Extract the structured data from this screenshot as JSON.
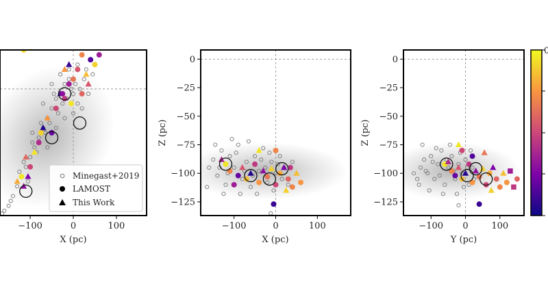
{
  "chart_data": [
    {
      "type": "scatter",
      "xlabel": "X (pc)",
      "ylabel": "",
      "xlim": [
        -170,
        170
      ],
      "ylim": [
        -130,
        40
      ],
      "x_ticks": [
        "-100",
        "0",
        "100"
      ],
      "y_ticks": [],
      "ref_lines": {
        "x": 0,
        "y": 0
      },
      "legend": {
        "position": "lower-right",
        "entries": [
          {
            "label": "Minegast+2019",
            "marker": "open-circle"
          },
          {
            "label": "LAMOST",
            "marker": "filled-circle"
          },
          {
            "label": "This Work",
            "marker": "triangle"
          }
        ]
      },
      "background": [
        {
          "x": -140,
          "y": -110
        },
        {
          "x": -150,
          "y": -120
        },
        {
          "x": -160,
          "y": -125
        },
        {
          "x": -130,
          "y": -100
        },
        {
          "x": -120,
          "y": -90
        },
        {
          "x": -110,
          "y": -80
        },
        {
          "x": -100,
          "y": -70
        },
        {
          "x": -90,
          "y": -60
        },
        {
          "x": -80,
          "y": -50
        },
        {
          "x": -70,
          "y": -40
        },
        {
          "x": -60,
          "y": -30
        },
        {
          "x": -50,
          "y": -20
        },
        {
          "x": -40,
          "y": -10
        },
        {
          "x": -30,
          "y": -5
        },
        {
          "x": -20,
          "y": 5
        },
        {
          "x": -10,
          "y": 10
        },
        {
          "x": 0,
          "y": -5
        },
        {
          "x": 10,
          "y": -15
        },
        {
          "x": 20,
          "y": -20
        },
        {
          "x": -95,
          "y": -55
        },
        {
          "x": -85,
          "y": -65
        },
        {
          "x": -75,
          "y": -35
        },
        {
          "x": -65,
          "y": -45
        },
        {
          "x": -55,
          "y": -35
        },
        {
          "x": -45,
          "y": -5
        },
        {
          "x": -35,
          "y": -25
        },
        {
          "x": -25,
          "y": -15
        },
        {
          "x": -15,
          "y": -10
        },
        {
          "x": -5,
          "y": 0
        },
        {
          "x": 5,
          "y": 5
        },
        {
          "x": 15,
          "y": 0
        },
        {
          "x": 25,
          "y": 10
        },
        {
          "x": 35,
          "y": -5
        },
        {
          "x": 45,
          "y": 15
        },
        {
          "x": -165,
          "y": -128
        },
        {
          "x": -145,
          "y": -115
        },
        {
          "x": -125,
          "y": -85
        },
        {
          "x": -105,
          "y": -95
        },
        {
          "x": -115,
          "y": -75
        },
        {
          "x": -95,
          "y": -45
        },
        {
          "x": -60,
          "y": -60
        },
        {
          "x": -40,
          "y": -40
        },
        {
          "x": -20,
          "y": -30
        },
        {
          "x": 0,
          "y": -25
        },
        {
          "x": 30,
          "y": 20
        },
        {
          "x": 10,
          "y": 25
        },
        {
          "x": -10,
          "y": 20
        },
        {
          "x": -30,
          "y": 15
        },
        {
          "x": -50,
          "y": 5
        },
        {
          "x": -70,
          "y": -15
        }
      ],
      "sample": [
        {
          "x": -115,
          "y": 40,
          "c": 0.92,
          "m": "circle"
        },
        {
          "x": 40,
          "y": 30,
          "c": 0.15,
          "m": "circle"
        },
        {
          "x": 50,
          "y": 25,
          "c": 0.9,
          "m": "circle"
        },
        {
          "x": 20,
          "y": 35,
          "c": 0.7,
          "m": "circle"
        },
        {
          "x": 10,
          "y": 20,
          "c": 0.55,
          "m": "circle"
        },
        {
          "x": 30,
          "y": 15,
          "c": 0.85,
          "m": "triangle"
        },
        {
          "x": -20,
          "y": 20,
          "c": 0.75,
          "m": "triangle"
        },
        {
          "x": 0,
          "y": 10,
          "c": 0.65,
          "m": "circle"
        },
        {
          "x": -10,
          "y": 5,
          "c": 0.35,
          "m": "circle"
        },
        {
          "x": -30,
          "y": -5,
          "c": 0.1,
          "m": "triangle"
        },
        {
          "x": -20,
          "y": -10,
          "c": 0.45,
          "m": "circle"
        },
        {
          "x": -25,
          "y": -5,
          "c": 0.3,
          "m": "circle"
        },
        {
          "x": 20,
          "y": -5,
          "c": 0.6,
          "m": "circle"
        },
        {
          "x": -5,
          "y": -15,
          "c": 0.95,
          "m": "circle"
        },
        {
          "x": -60,
          "y": -30,
          "c": 0.75,
          "m": "triangle"
        },
        {
          "x": -70,
          "y": -40,
          "c": 0.05,
          "m": "triangle"
        },
        {
          "x": -50,
          "y": -45,
          "c": 0.2,
          "m": "circle"
        },
        {
          "x": -80,
          "y": -55,
          "c": 0.4,
          "m": "circle"
        },
        {
          "x": -90,
          "y": -65,
          "c": 0.95,
          "m": "triangle"
        },
        {
          "x": -110,
          "y": -70,
          "c": 0.6,
          "m": "triangle"
        },
        {
          "x": -100,
          "y": -80,
          "c": 0.5,
          "m": "circle"
        },
        {
          "x": -120,
          "y": -90,
          "c": 0.95,
          "m": "circle"
        },
        {
          "x": -115,
          "y": -100,
          "c": 0.3,
          "m": "triangle"
        },
        {
          "x": -130,
          "y": -95,
          "c": 0.8,
          "m": "triangle"
        },
        {
          "x": -105,
          "y": -90,
          "c": 0.25,
          "m": "triangle"
        },
        {
          "x": -40,
          "y": -20,
          "c": 0.5,
          "m": "circle"
        },
        {
          "x": 60,
          "y": 35,
          "c": 0.35,
          "m": "circle"
        },
        {
          "x": -10,
          "y": 25,
          "c": 0.1,
          "m": "triangle"
        },
        {
          "x": -75,
          "y": -45,
          "c": 0.9,
          "m": "circle"
        },
        {
          "x": 35,
          "y": 5,
          "c": 0.55,
          "m": "triangle"
        }
      ],
      "centroids": [
        {
          "x": -110,
          "y": -105
        },
        {
          "x": -50,
          "y": -50
        },
        {
          "x": -20,
          "y": -5
        },
        {
          "x": 15,
          "y": -35
        }
      ]
    },
    {
      "type": "scatter",
      "xlabel": "X (pc)",
      "ylabel": "Z (pc)",
      "xlim": [
        -180,
        180
      ],
      "ylim": [
        -137,
        8
      ],
      "x_ticks": [
        "-100",
        "0",
        "100"
      ],
      "y_ticks": [
        "0",
        "-25",
        "-50",
        "-75",
        "-100",
        "-125"
      ],
      "ref_lines": {
        "x": 0,
        "y": 0
      },
      "background": [
        {
          "x": -160,
          "y": -95
        },
        {
          "x": -150,
          "y": -88
        },
        {
          "x": -140,
          "y": -102
        },
        {
          "x": -130,
          "y": -80
        },
        {
          "x": -120,
          "y": -110
        },
        {
          "x": -110,
          "y": -85
        },
        {
          "x": -100,
          "y": -95
        },
        {
          "x": -90,
          "y": -75
        },
        {
          "x": -80,
          "y": -105
        },
        {
          "x": -70,
          "y": -90
        },
        {
          "x": -60,
          "y": -112
        },
        {
          "x": -50,
          "y": -85
        },
        {
          "x": -40,
          "y": -98
        },
        {
          "x": -30,
          "y": -78
        },
        {
          "x": -20,
          "y": -108
        },
        {
          "x": -10,
          "y": -90
        },
        {
          "x": 0,
          "y": -100
        },
        {
          "x": 10,
          "y": -85
        },
        {
          "x": 20,
          "y": -95
        },
        {
          "x": 30,
          "y": -110
        },
        {
          "x": 40,
          "y": -90
        },
        {
          "x": -165,
          "y": -112
        },
        {
          "x": -145,
          "y": -75
        },
        {
          "x": -125,
          "y": -118
        },
        {
          "x": -105,
          "y": -70
        },
        {
          "x": -85,
          "y": -118
        },
        {
          "x": -65,
          "y": -72
        },
        {
          "x": -45,
          "y": -118
        },
        {
          "x": -25,
          "y": -95
        },
        {
          "x": -5,
          "y": -115
        },
        {
          "x": 15,
          "y": -105
        },
        {
          "x": -135,
          "y": -95
        },
        {
          "x": -115,
          "y": -100
        },
        {
          "x": -95,
          "y": -82
        },
        {
          "x": -75,
          "y": -98
        },
        {
          "x": -55,
          "y": -102
        },
        {
          "x": -35,
          "y": -88
        },
        {
          "x": -15,
          "y": -82
        },
        {
          "x": 5,
          "y": -92
        },
        {
          "x": -12,
          "y": -135
        }
      ],
      "sample": [
        {
          "x": -120,
          "y": -92,
          "c": 0.95,
          "m": "circle"
        },
        {
          "x": -130,
          "y": -88,
          "c": 0.4,
          "m": "triangle"
        },
        {
          "x": -110,
          "y": -98,
          "c": 0.7,
          "m": "circle"
        },
        {
          "x": -90,
          "y": -102,
          "c": 0.2,
          "m": "circle"
        },
        {
          "x": -80,
          "y": -95,
          "c": 0.55,
          "m": "triangle"
        },
        {
          "x": -70,
          "y": -105,
          "c": 0.85,
          "m": "circle"
        },
        {
          "x": -60,
          "y": -100,
          "c": 0.05,
          "m": "triangle"
        },
        {
          "x": -50,
          "y": -92,
          "c": 0.45,
          "m": "circle"
        },
        {
          "x": -40,
          "y": -108,
          "c": 0.75,
          "m": "circle"
        },
        {
          "x": -30,
          "y": -98,
          "c": 0.3,
          "m": "triangle"
        },
        {
          "x": -20,
          "y": -103,
          "c": 0.65,
          "m": "circle"
        },
        {
          "x": -10,
          "y": -96,
          "c": 0.9,
          "m": "triangle"
        },
        {
          "x": 0,
          "y": -110,
          "c": 0.5,
          "m": "circle"
        },
        {
          "x": 10,
          "y": -100,
          "c": 0.8,
          "m": "circle"
        },
        {
          "x": 20,
          "y": -95,
          "c": 0.25,
          "m": "triangle"
        },
        {
          "x": 30,
          "y": -105,
          "c": 0.6,
          "m": "circle"
        },
        {
          "x": 40,
          "y": -112,
          "c": 0.7,
          "m": "circle"
        },
        {
          "x": 50,
          "y": -100,
          "c": 0.85,
          "m": "triangle"
        },
        {
          "x": 60,
          "y": -108,
          "c": 0.75,
          "m": "circle"
        },
        {
          "x": -40,
          "y": -80,
          "c": 0.95,
          "m": "triangle"
        },
        {
          "x": 0,
          "y": -80,
          "c": 0.7,
          "m": "circle"
        },
        {
          "x": -5,
          "y": -127,
          "c": 0.1,
          "m": "circle"
        },
        {
          "x": 25,
          "y": -115,
          "c": 0.9,
          "m": "triangle"
        },
        {
          "x": -100,
          "y": -110,
          "c": 0.35,
          "m": "circle"
        },
        {
          "x": 35,
          "y": -95,
          "c": 0.45,
          "m": "circle"
        }
      ],
      "centroids": [
        {
          "x": -120,
          "y": -92
        },
        {
          "x": -60,
          "y": -102
        },
        {
          "x": -15,
          "y": -105
        },
        {
          "x": 15,
          "y": -96
        }
      ]
    },
    {
      "type": "scatter",
      "xlabel": "Y (pc)",
      "ylabel": "Z (pc)",
      "xlim": [
        -180,
        170
      ],
      "ylim": [
        -137,
        8
      ],
      "x_ticks": [
        "-100",
        "0",
        "100"
      ],
      "y_ticks": [
        "0",
        "-25",
        "-50",
        "-75",
        "-100",
        "-125"
      ],
      "ref_lines": {
        "x": 0,
        "y": 0
      },
      "background": [
        {
          "x": -130,
          "y": -95
        },
        {
          "x": -120,
          "y": -88
        },
        {
          "x": -110,
          "y": -100
        },
        {
          "x": -100,
          "y": -85
        },
        {
          "x": -90,
          "y": -105
        },
        {
          "x": -80,
          "y": -92
        },
        {
          "x": -70,
          "y": -80
        },
        {
          "x": -60,
          "y": -110
        },
        {
          "x": -50,
          "y": -95
        },
        {
          "x": -40,
          "y": -85
        },
        {
          "x": -30,
          "y": -105
        },
        {
          "x": -20,
          "y": -92
        },
        {
          "x": -10,
          "y": -100
        },
        {
          "x": 0,
          "y": -88
        },
        {
          "x": 10,
          "y": -110
        },
        {
          "x": 20,
          "y": -95
        },
        {
          "x": -140,
          "y": -105
        },
        {
          "x": -125,
          "y": -75
        },
        {
          "x": -105,
          "y": -115
        },
        {
          "x": -85,
          "y": -78
        },
        {
          "x": -65,
          "y": -118
        },
        {
          "x": -45,
          "y": -75
        },
        {
          "x": -25,
          "y": -118
        },
        {
          "x": -5,
          "y": -112
        },
        {
          "x": 15,
          "y": -80
        },
        {
          "x": -115,
          "y": -98
        },
        {
          "x": -95,
          "y": -90
        },
        {
          "x": -75,
          "y": -102
        },
        {
          "x": -55,
          "y": -88
        },
        {
          "x": -35,
          "y": -98
        },
        {
          "x": -15,
          "y": -82
        },
        {
          "x": 5,
          "y": -95
        },
        {
          "x": 25,
          "y": -105
        },
        {
          "x": -150,
          "y": -100
        },
        {
          "x": -135,
          "y": -110
        },
        {
          "x": -20,
          "y": -128
        }
      ],
      "sample": [
        {
          "x": -60,
          "y": -92,
          "c": 0.95,
          "m": "circle"
        },
        {
          "x": -50,
          "y": -90,
          "c": 0.4,
          "m": "triangle"
        },
        {
          "x": -40,
          "y": -98,
          "c": 0.7,
          "m": "circle"
        },
        {
          "x": -30,
          "y": -102,
          "c": 0.2,
          "m": "circle"
        },
        {
          "x": -20,
          "y": -95,
          "c": 0.55,
          "m": "triangle"
        },
        {
          "x": -10,
          "y": -105,
          "c": 0.85,
          "m": "circle"
        },
        {
          "x": 0,
          "y": -100,
          "c": 0.05,
          "m": "triangle"
        },
        {
          "x": 10,
          "y": -92,
          "c": 0.45,
          "m": "circle"
        },
        {
          "x": 20,
          "y": -108,
          "c": 0.75,
          "m": "circle"
        },
        {
          "x": 30,
          "y": -98,
          "c": 0.3,
          "m": "triangle"
        },
        {
          "x": 40,
          "y": -103,
          "c": 0.65,
          "m": "circle"
        },
        {
          "x": 50,
          "y": -96,
          "c": 0.9,
          "m": "triangle"
        },
        {
          "x": 60,
          "y": -110,
          "c": 0.5,
          "m": "circle"
        },
        {
          "x": 70,
          "y": -100,
          "c": 0.8,
          "m": "circle"
        },
        {
          "x": 80,
          "y": -95,
          "c": 0.25,
          "m": "triangle"
        },
        {
          "x": 90,
          "y": -105,
          "c": 0.6,
          "m": "circle"
        },
        {
          "x": 100,
          "y": -112,
          "c": 0.7,
          "m": "circle"
        },
        {
          "x": 110,
          "y": -100,
          "c": 0.85,
          "m": "triangle"
        },
        {
          "x": 120,
          "y": -108,
          "c": 0.75,
          "m": "circle"
        },
        {
          "x": 130,
          "y": -98,
          "c": 0.35,
          "m": "square"
        },
        {
          "x": -10,
          "y": -80,
          "c": 0.5,
          "m": "circle"
        },
        {
          "x": 20,
          "y": -85,
          "c": 0.15,
          "m": "circle"
        },
        {
          "x": 40,
          "y": -127,
          "c": 0.1,
          "m": "circle"
        },
        {
          "x": 75,
          "y": -115,
          "c": 0.9,
          "m": "triangle"
        },
        {
          "x": 150,
          "y": -105,
          "c": 0.6,
          "m": "circle"
        },
        {
          "x": 140,
          "y": -112,
          "c": 0.45,
          "m": "square"
        },
        {
          "x": -20,
          "y": -75,
          "c": 0.95,
          "m": "triangle"
        },
        {
          "x": 55,
          "y": -82,
          "c": 0.65,
          "m": "triangle"
        }
      ],
      "centroids": [
        {
          "x": -55,
          "y": -92
        },
        {
          "x": 5,
          "y": -102
        },
        {
          "x": 30,
          "y": -96
        },
        {
          "x": 60,
          "y": -105
        }
      ]
    }
  ],
  "colorbar": {
    "cmap": "plasma",
    "top_label": "0"
  }
}
